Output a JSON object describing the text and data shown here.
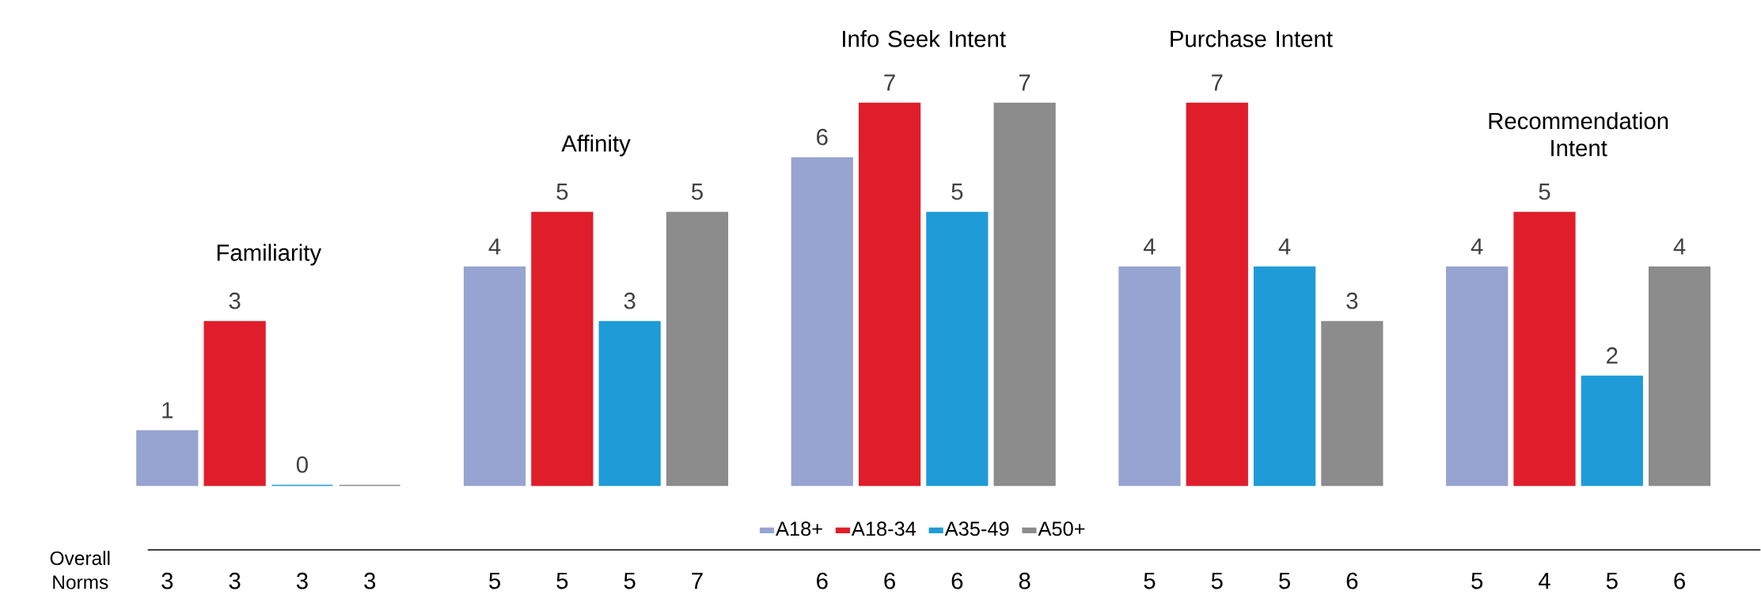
{
  "chart_data": {
    "type": "bar",
    "categories": [
      "Familiarity",
      "Affinity",
      "Info Seek Intent",
      "Purchase Intent",
      "Recommendation Intent"
    ],
    "series": [
      {
        "name": "A18+",
        "color": "#97a3d1",
        "values": [
          1,
          4,
          6,
          4,
          4
        ],
        "value_labels": [
          "1",
          "4",
          "6",
          "4",
          "4"
        ]
      },
      {
        "name": "A18-34",
        "color": "#e01e2b",
        "values": [
          3,
          5,
          7,
          7,
          5
        ],
        "value_labels": [
          "3",
          "5",
          "7",
          "7",
          "5"
        ]
      },
      {
        "name": "A35-49",
        "color": "#1f9bd7",
        "values": [
          0,
          3,
          5,
          4,
          2
        ],
        "value_labels": [
          "0",
          "3",
          "5",
          "4",
          "2"
        ]
      },
      {
        "name": "A50+",
        "color": "#8c8c8c",
        "values": [
          0,
          5,
          7,
          3,
          4
        ],
        "value_labels": [
          null,
          "5",
          "7",
          "3",
          "4"
        ]
      }
    ],
    "legend": "bottom",
    "annotations": [
      "Overall Norms",
      "3",
      "3",
      "3",
      "3",
      "5",
      "5",
      "5",
      "7",
      "6",
      "6",
      "6",
      "8",
      "5",
      "5",
      "5",
      "6",
      "5",
      "4",
      "5",
      "6"
    ]
  }
}
